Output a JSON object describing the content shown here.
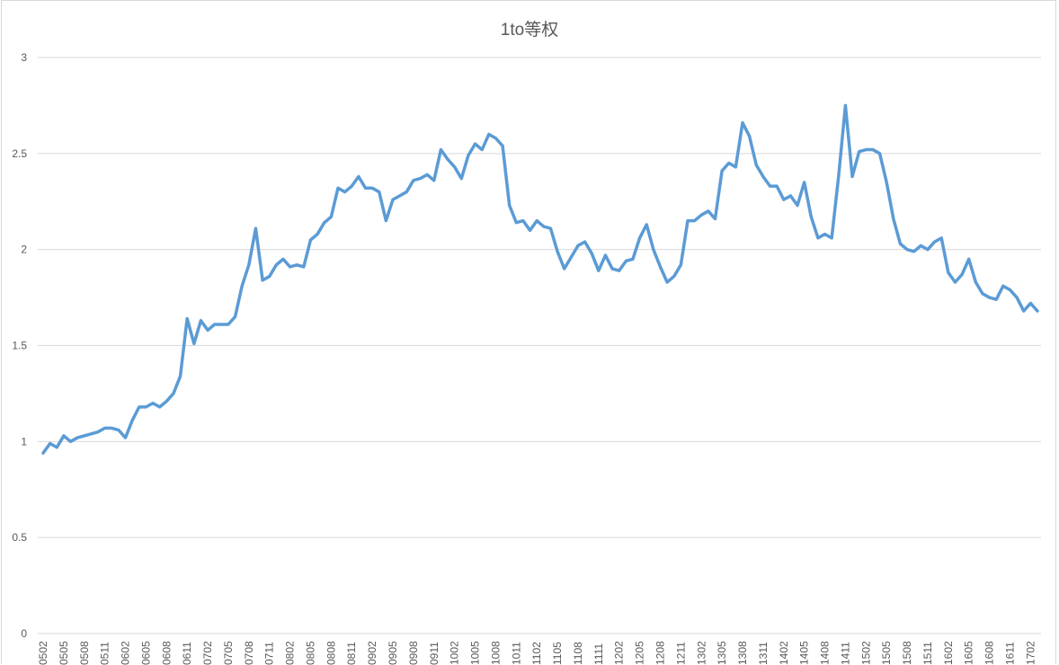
{
  "chart_data": {
    "type": "line",
    "title": "1to等权",
    "xlabel": "",
    "ylabel": "",
    "ylim": [
      0,
      3
    ],
    "yticks": [
      "0",
      "0.5",
      "1",
      "1.5",
      "2",
      "2.5",
      "3"
    ],
    "grid": true,
    "legend": "none",
    "line_color": "#5b9bd5",
    "grid_color": "#d9d9d9",
    "tick_label_color": "#595959",
    "x_tick_labels": [
      "0502",
      "0505",
      "0508",
      "0511",
      "0602",
      "0605",
      "0608",
      "0611",
      "0702",
      "0705",
      "0708",
      "0711",
      "0802",
      "0805",
      "0808",
      "0811",
      "0902",
      "0905",
      "0908",
      "0911",
      "1002",
      "1005",
      "1008",
      "1011",
      "1102",
      "1105",
      "1108",
      "1111",
      "1202",
      "1205",
      "1208",
      "1211",
      "1302",
      "1305",
      "1308",
      "1311",
      "1402",
      "1405",
      "1408",
      "1411",
      "1502",
      "1505",
      "1508",
      "1511",
      "1602",
      "1605",
      "1608",
      "1611",
      "1702"
    ],
    "series": [
      {
        "values": [
          0.94,
          0.99,
          0.97,
          1.03,
          1.0,
          1.02,
          1.03,
          1.04,
          1.05,
          1.07,
          1.07,
          1.06,
          1.02,
          1.11,
          1.18,
          1.18,
          1.2,
          1.18,
          1.21,
          1.25,
          1.34,
          1.64,
          1.51,
          1.63,
          1.58,
          1.61,
          1.61,
          1.61,
          1.65,
          1.81,
          1.92,
          2.11,
          1.84,
          1.86,
          1.92,
          1.95,
          1.91,
          1.92,
          1.91,
          2.05,
          2.08,
          2.14,
          2.17,
          2.32,
          2.3,
          2.33,
          2.38,
          2.32,
          2.32,
          2.3,
          2.15,
          2.26,
          2.28,
          2.3,
          2.36,
          2.37,
          2.39,
          2.36,
          2.52,
          2.47,
          2.43,
          2.37,
          2.49,
          2.55,
          2.52,
          2.6,
          2.58,
          2.54,
          2.23,
          2.14,
          2.15,
          2.1,
          2.15,
          2.12,
          2.11,
          1.99,
          1.9,
          1.96,
          2.02,
          2.04,
          1.98,
          1.89,
          1.97,
          1.9,
          1.89,
          1.94,
          1.95,
          2.06,
          2.13,
          2.0,
          1.91,
          1.83,
          1.86,
          1.92,
          2.15,
          2.15,
          2.18,
          2.2,
          2.16,
          2.41,
          2.45,
          2.43,
          2.66,
          2.59,
          2.44,
          2.38,
          2.33,
          2.33,
          2.26,
          2.28,
          2.23,
          2.35,
          2.17,
          2.06,
          2.08,
          2.06,
          2.38,
          2.75,
          2.38,
          2.51,
          2.52,
          2.52,
          2.5,
          2.35,
          2.16,
          2.03,
          2.0,
          1.99,
          2.02,
          2.0,
          2.04,
          2.06,
          1.88,
          1.83,
          1.87,
          1.95,
          1.83,
          1.77,
          1.75,
          1.74,
          1.81,
          1.79,
          1.75,
          1.68,
          1.72,
          1.68
        ]
      }
    ]
  }
}
